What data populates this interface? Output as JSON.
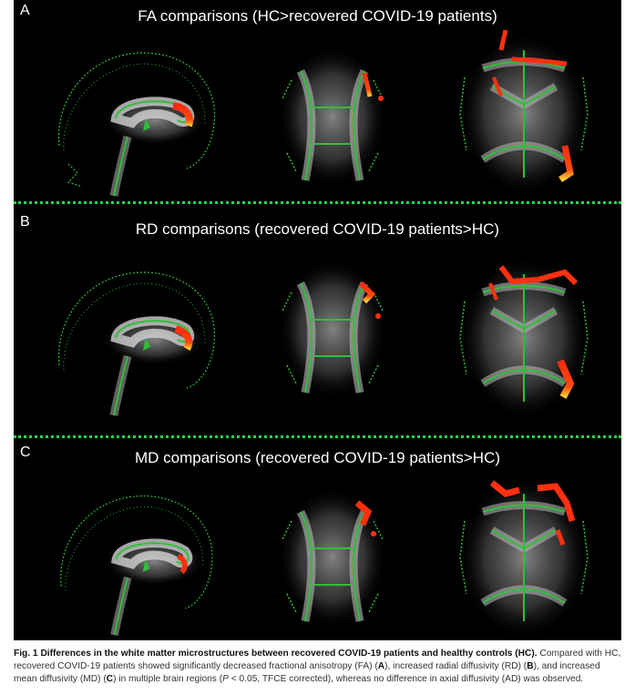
{
  "panels": [
    {
      "letter": "A",
      "title": "FA comparisons (HC>recovered COVID-19 patients)"
    },
    {
      "letter": "B",
      "title": "RD comparisons (recovered COVID-19 patients>HC)"
    },
    {
      "letter": "C",
      "title": "MD comparisons (recovered COVID-19 patients>HC)"
    }
  ],
  "caption": {
    "label": "Fig. 1",
    "bold_title": "Differences in the white matter microstructures between recovered COVID-19 patients and healthy controls (HC).",
    "t1": " Compared with HC, recovered COVID-19 patients showed significantly decreased fractional anisotropy (FA) (",
    "a": "A",
    "t2": "), increased radial diffusivity (RD) (",
    "b": "B",
    "t3": "), and increased mean diffusivity (MD) (",
    "c": "C",
    "t4": ") in multiple brain regions (",
    "p": "P",
    "t5": " < 0.05, TFCE corrected), whereas no difference in axial diffusivity (AD) was observed."
  },
  "colors": {
    "background": "#000000",
    "tract_green": "#2fbf3a",
    "skeleton_highlight": "#ff3010",
    "peak_yellow": "#ffe040",
    "separator": "#22d84a"
  }
}
